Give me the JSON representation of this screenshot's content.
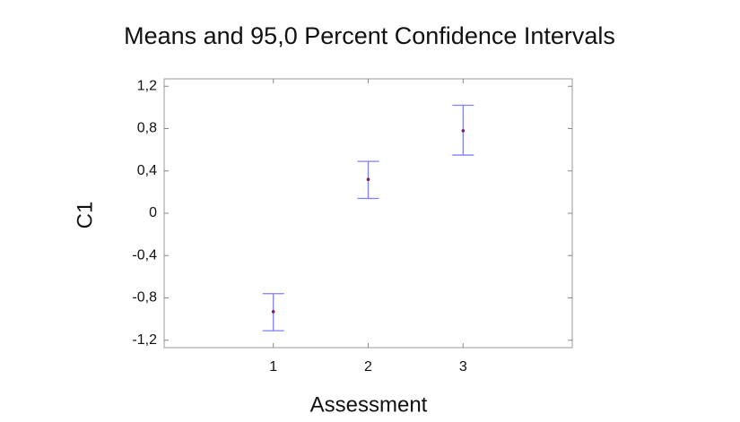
{
  "chart_data": {
    "type": "errorbar",
    "title": "Means and 95,0 Percent Confidence Intervals",
    "x_label": "Assessment",
    "y_label": "C1",
    "series": [
      {
        "x": [
          1,
          2,
          3
        ],
        "values": [
          -0.93,
          0.32,
          0.78
        ],
        "lower": [
          -1.11,
          0.14,
          0.55
        ],
        "upper": [
          -0.76,
          0.49,
          1.02
        ],
        "color": "#7f7fff",
        "point_color": "#8b1a4a"
      }
    ],
    "xlim": [
      -0.15,
      4.15
    ],
    "xticks": [
      1,
      2,
      3
    ],
    "ylim": [
      -1.27,
      1.27
    ],
    "yticks": [
      {
        "value": -1.2,
        "label": "-1,2"
      },
      {
        "value": -0.8,
        "label": "-0,8"
      },
      {
        "value": -0.4,
        "label": "-0,4"
      },
      0,
      {
        "value": 0.4,
        "label": "0,4"
      },
      {
        "value": 0.8,
        "label": "0,8"
      },
      {
        "value": 1.2,
        "label": "1,2"
      }
    ]
  }
}
